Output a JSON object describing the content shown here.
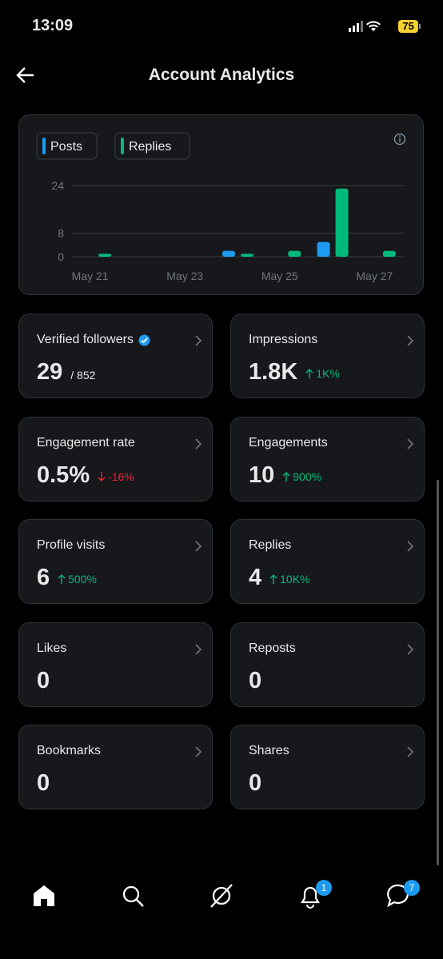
{
  "status_bar": {
    "time": "13:09",
    "battery": "75"
  },
  "header": {
    "title": "Account Analytics"
  },
  "chart_data": {
    "type": "bar",
    "categories": [
      "May 21",
      null,
      "May 23",
      null,
      "May 25",
      null,
      "May 27"
    ],
    "series": [
      {
        "name": "Posts",
        "color": "#1d9bf0",
        "values": [
          0,
          0,
          0,
          2,
          0,
          5,
          0
        ]
      },
      {
        "name": "Replies",
        "color": "#00ba7c",
        "values": [
          1,
          0,
          0,
          1,
          2,
          23,
          2
        ]
      }
    ],
    "ylim": [
      0,
      24
    ],
    "yticks": [
      0,
      8,
      24
    ],
    "grid": true
  },
  "cards": [
    {
      "label": "Verified followers",
      "value": "29",
      "total": "/ 852",
      "verified": true
    },
    {
      "label": "Impressions",
      "value": "1.8K",
      "change": "1K%",
      "trend": "up"
    },
    {
      "label": "Engagement rate",
      "value": "0.5%",
      "change": "-16%",
      "trend": "down"
    },
    {
      "label": "Engagements",
      "value": "10",
      "change": "900%",
      "trend": "up"
    },
    {
      "label": "Profile visits",
      "value": "6",
      "change": "500%",
      "trend": "up"
    },
    {
      "label": "Replies",
      "value": "4",
      "change": "10K%",
      "trend": "up"
    },
    {
      "label": "Likes",
      "value": "0"
    },
    {
      "label": "Reposts",
      "value": "0"
    },
    {
      "label": "Bookmarks",
      "value": "0"
    },
    {
      "label": "Shares",
      "value": "0"
    }
  ],
  "nav": {
    "notifications_badge": "1",
    "messages_badge": "7"
  }
}
